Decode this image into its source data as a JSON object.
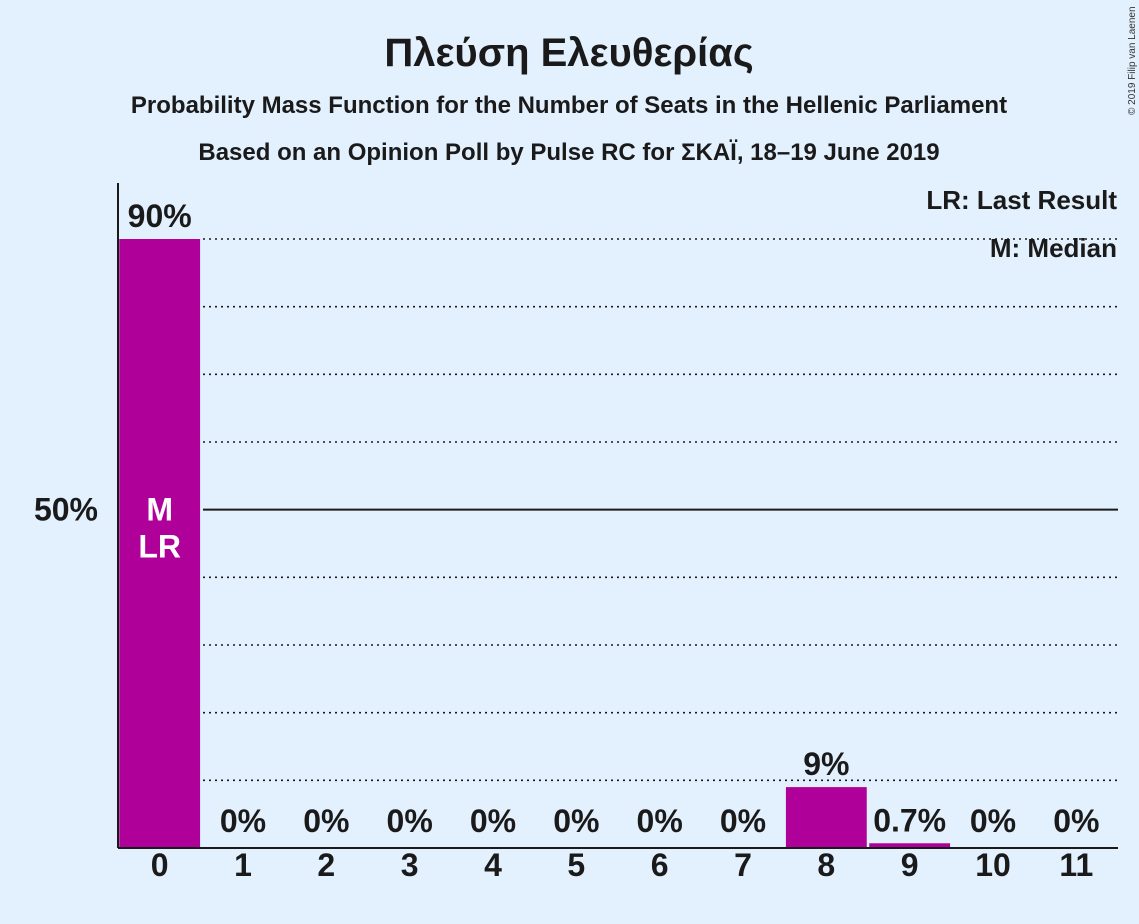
{
  "title": "Πλεύση Ελευθερίας",
  "subtitle1": "Probability Mass Function for the Number of Seats in the Hellenic Parliament",
  "subtitle2": "Based on an Opinion Poll by Pulse RC for ΣΚΑΪ, 18–19 June 2019",
  "copyright": "© 2019 Filip van Laenen",
  "legend": {
    "last_result": "LR: Last Result",
    "median": "M: Median"
  },
  "colors": {
    "background": "#e3f0fd",
    "bar": "#b0009a",
    "axis": "#1a1a1a",
    "marker_text": "#ffffff"
  },
  "chart_data": {
    "type": "bar",
    "categories": [
      "0",
      "1",
      "2",
      "3",
      "4",
      "5",
      "6",
      "7",
      "8",
      "9",
      "10",
      "11"
    ],
    "values": [
      90,
      0,
      0,
      0,
      0,
      0,
      0,
      0,
      9,
      0.7,
      0,
      0
    ],
    "value_labels": [
      "90%",
      "0%",
      "0%",
      "0%",
      "0%",
      "0%",
      "0%",
      "0%",
      "9%",
      "0.7%",
      "0%",
      "0%"
    ],
    "ylim": [
      0,
      100
    ],
    "y_tick_labels": [
      {
        "value": 50,
        "label": "50%"
      }
    ],
    "gridlines_dotted": [
      10,
      20,
      30,
      40,
      60,
      70,
      80,
      90
    ],
    "gridline_solid": 50,
    "median_index": 0,
    "last_result_index": 0,
    "median_marker": "M",
    "last_result_marker": "LR",
    "legend_position": "top-right"
  }
}
